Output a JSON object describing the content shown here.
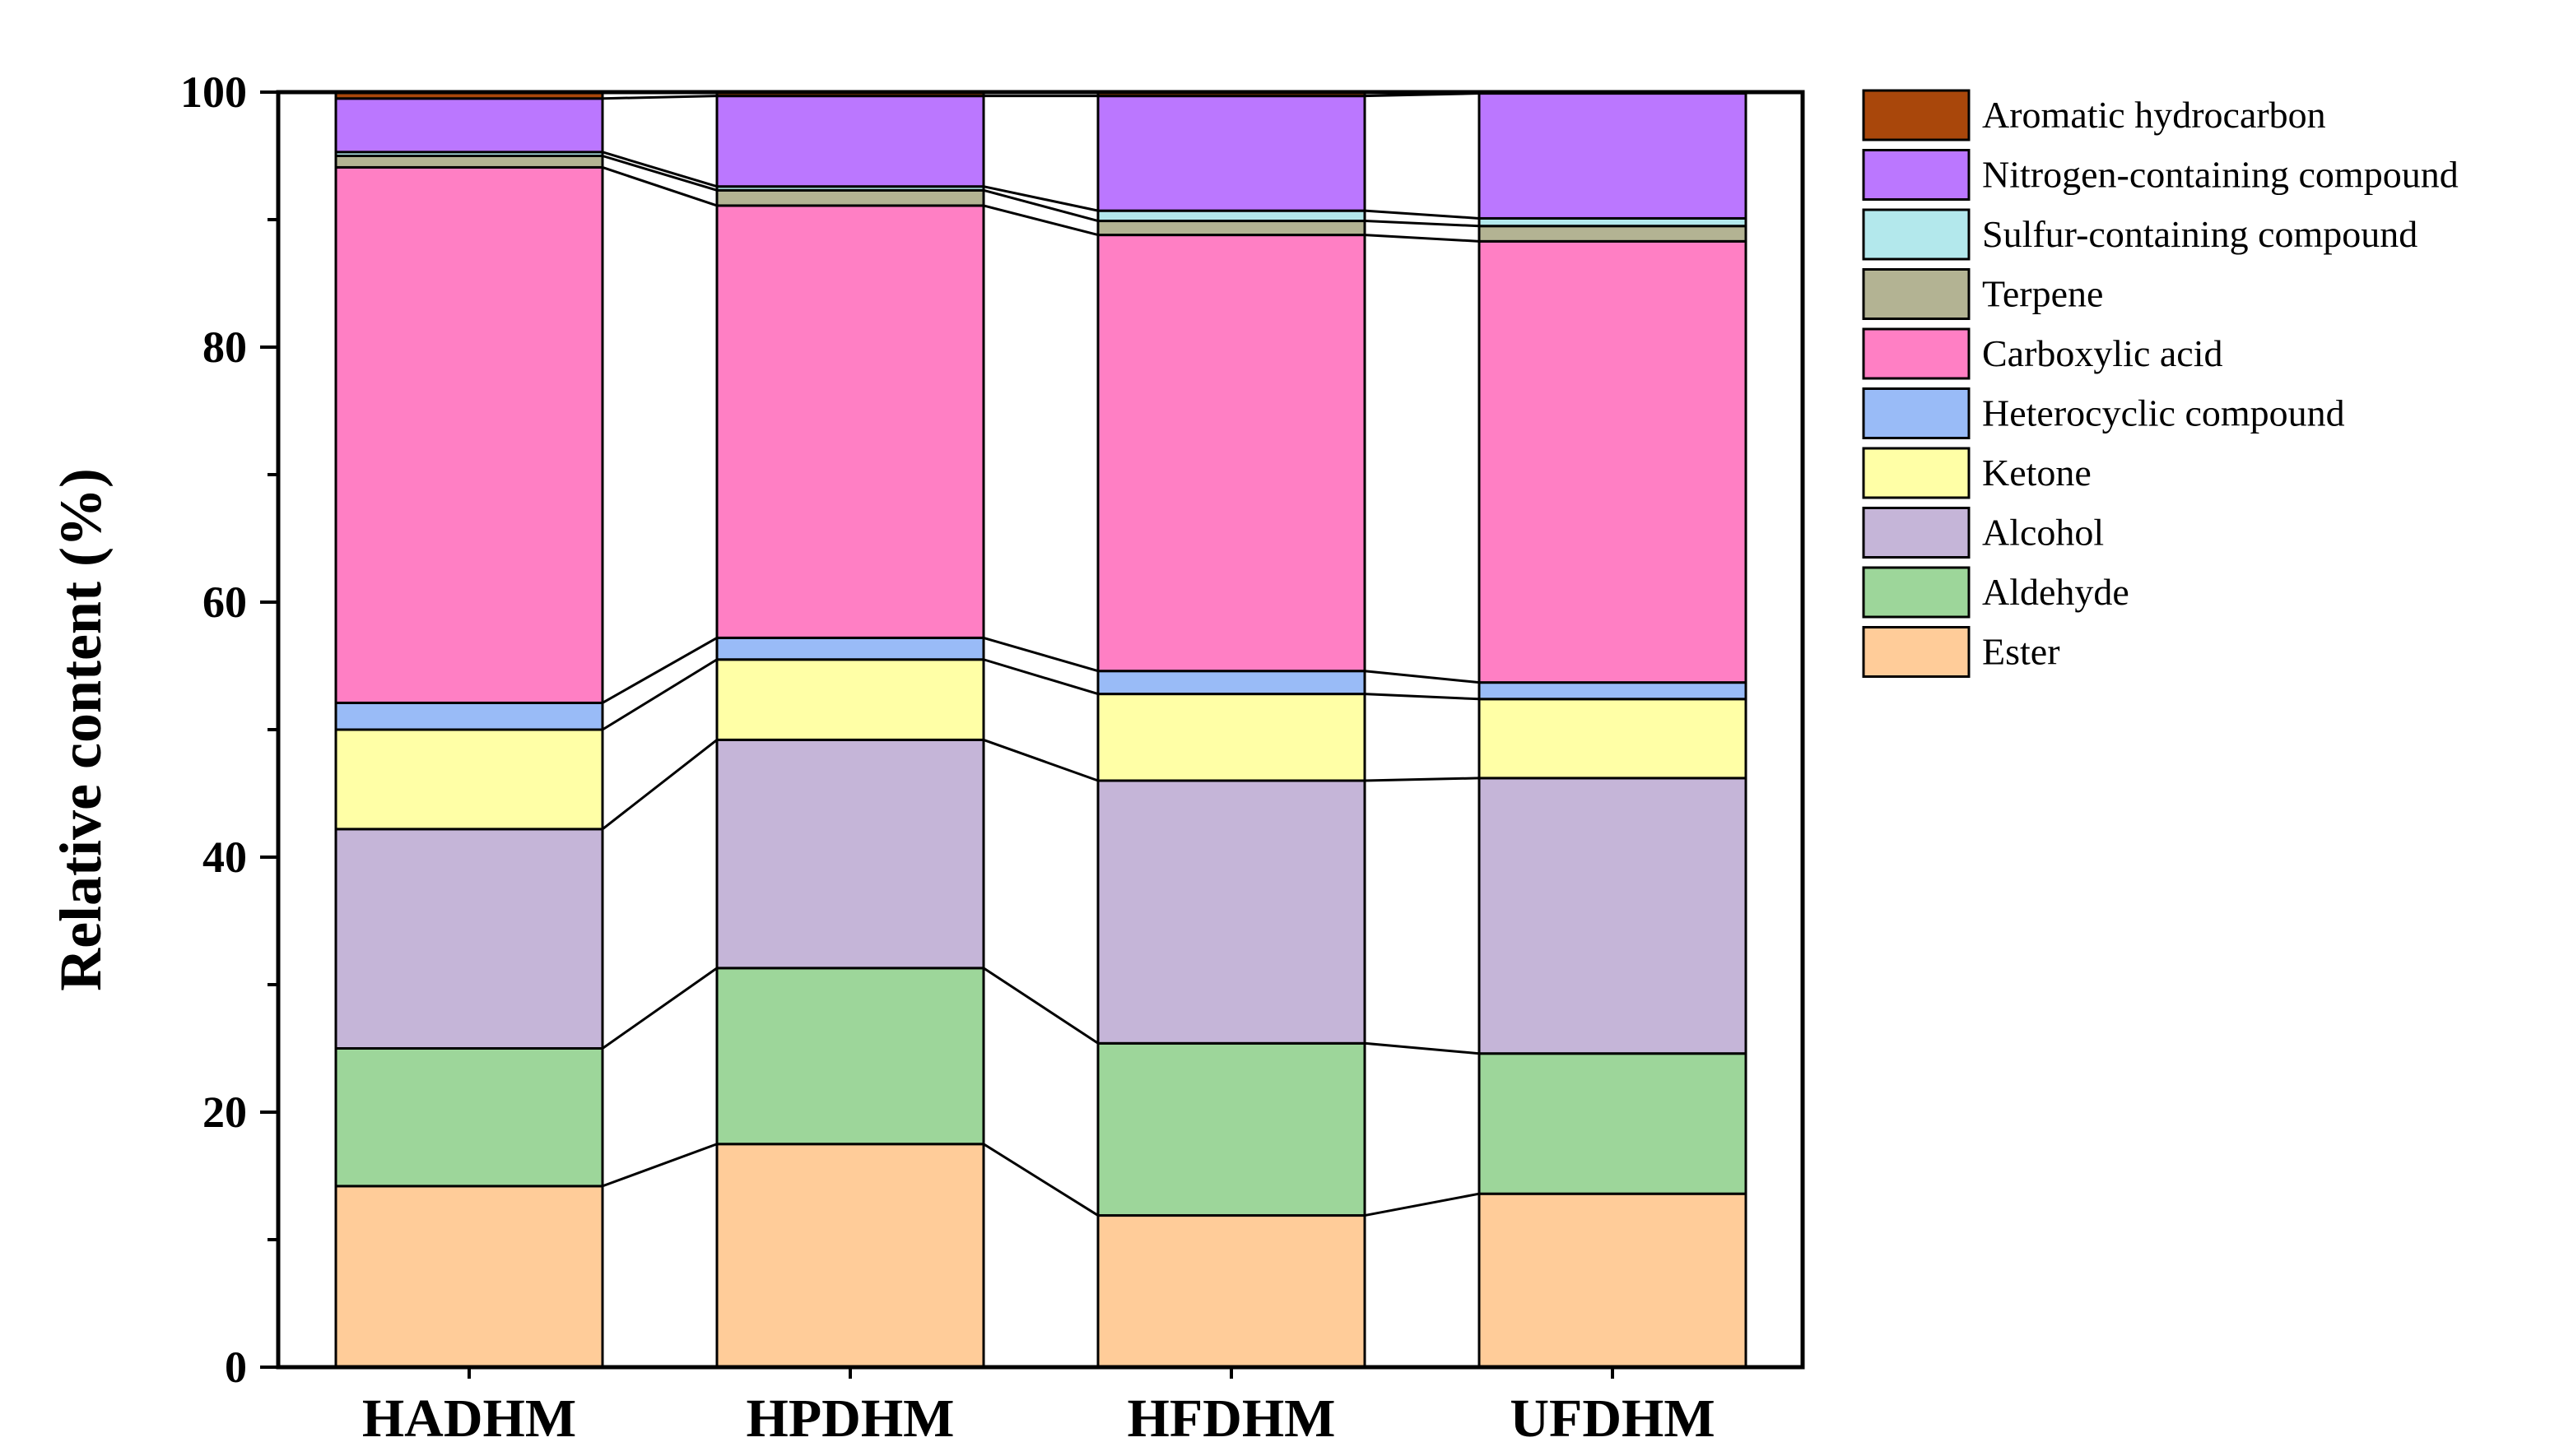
{
  "chart_data": {
    "type": "bar",
    "stacked": true,
    "connector_lines": true,
    "categories": [
      "HADHM",
      "HPDHM",
      "HFDHM",
      "UFDHM"
    ],
    "ylabel": "Relative content (%)",
    "xlabel": "",
    "ylim": [
      0,
      100
    ],
    "yticks": [
      0,
      20,
      40,
      60,
      80,
      100
    ],
    "legend_position": "right",
    "series": [
      {
        "name": "Ester",
        "color": "#FFCC99",
        "values": [
          14.2,
          17.5,
          11.9,
          13.6
        ]
      },
      {
        "name": "Aldehyde",
        "color": "#9DD69A",
        "values": [
          10.8,
          13.8,
          13.5,
          11.0
        ]
      },
      {
        "name": "Alcohol",
        "color": "#C5B5D8",
        "values": [
          17.2,
          17.9,
          20.6,
          21.6
        ]
      },
      {
        "name": "Ketone",
        "color": "#FFFFA6",
        "values": [
          7.8,
          6.3,
          6.8,
          6.2
        ]
      },
      {
        "name": "Heterocyclic compound",
        "color": "#99BBF7",
        "values": [
          2.1,
          1.7,
          1.8,
          1.3
        ]
      },
      {
        "name": "Carboxylic acid",
        "color": "#FF7FC4",
        "values": [
          42.0,
          33.9,
          34.2,
          34.6
        ]
      },
      {
        "name": "Terpene",
        "color": "#B3B393",
        "values": [
          0.9,
          1.2,
          1.1,
          1.2
        ]
      },
      {
        "name": "Sulfur-containing compound",
        "color": "#B3E8EC",
        "values": [
          0.3,
          0.3,
          0.8,
          0.6
        ]
      },
      {
        "name": "Nitrogen-containing compound",
        "color": "#BB77FF",
        "values": [
          4.2,
          7.1,
          9.0,
          9.8
        ]
      },
      {
        "name": "Aromatic hydrocarbon",
        "color": "#A9470B",
        "values": [
          0.5,
          0.3,
          0.3,
          0.1
        ]
      }
    ],
    "legend_order": [
      "Aromatic hydrocarbon",
      "Nitrogen-containing compound",
      "Sulfur-containing compound",
      "Terpene",
      "Carboxylic acid",
      "Heterocyclic compound",
      "Ketone",
      "Alcohol",
      "Aldehyde",
      "Ester"
    ]
  }
}
